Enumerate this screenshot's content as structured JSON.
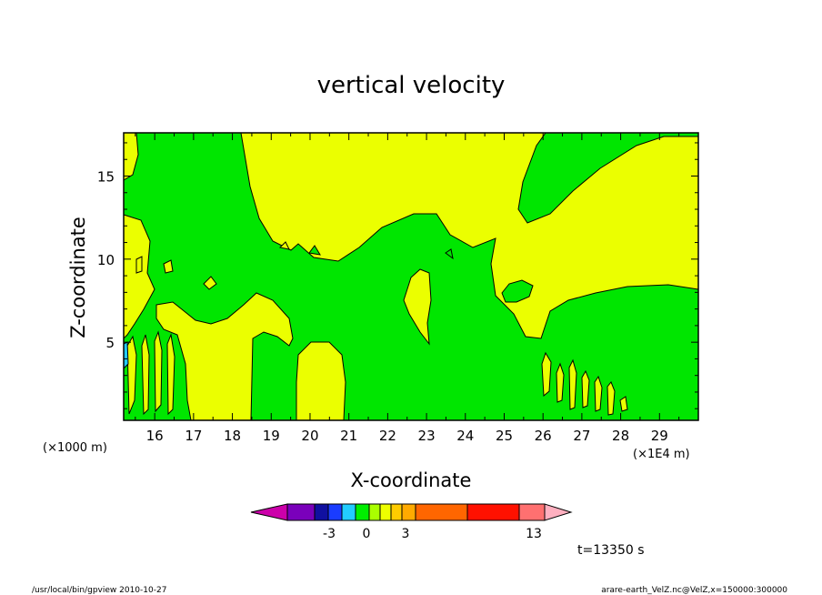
{
  "chart_data": {
    "type": "contour",
    "title": "vertical velocity",
    "xlabel": "X-coordinate",
    "ylabel": "Z-coordinate",
    "x_unit": "(×1E4 m)",
    "y_unit": "(×1000 m)",
    "xlim": [
      15.2,
      30.0
    ],
    "ylim": [
      0.3,
      17.6
    ],
    "x_ticks": [
      16,
      17,
      18,
      19,
      20,
      21,
      22,
      23,
      24,
      25,
      26,
      27,
      28,
      29
    ],
    "y_ticks": [
      5,
      10,
      15
    ],
    "colorbar": {
      "levels": [
        -3,
        0,
        3,
        13
      ],
      "level_labels": [
        "-3",
        "0",
        "3",
        "13"
      ],
      "colors": [
        "#cc00aa",
        "#7a00bb",
        "#1010a0",
        "#1a3cff",
        "#22ccff",
        "#00ee00",
        "#aaff00",
        "#eeff00",
        "#ffcc00",
        "#ffaa00",
        "#ff6600",
        "#ff1100",
        "#ff7070",
        "#ffb0c0"
      ],
      "colors_note": "colour scale from min to max"
    },
    "fields": {
      "positive_color": "#ebff00",
      "negative_color": "#00e600"
    },
    "time_label": "t=13350 s"
  },
  "footer": {
    "left": "/usr/local/bin/gpview   2010-10-27",
    "right": "arare-earth_VelZ.nc@VelZ,x=150000:300000"
  }
}
